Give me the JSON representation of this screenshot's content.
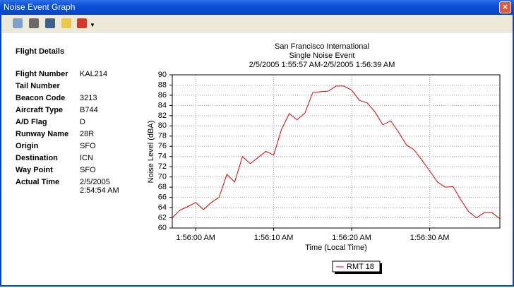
{
  "window": {
    "title": "Noise Event Graph"
  },
  "details": {
    "heading": "Flight Details",
    "fields": [
      {
        "label": "Flight Number",
        "value": "KAL214"
      },
      {
        "label": "Tail Number"
      },
      {
        "label": "Beacon Code",
        "value": "3213"
      },
      {
        "label": "Aircraft Type",
        "value": "B744"
      },
      {
        "label": "A/D Flag",
        "value": "D"
      },
      {
        "label": "Runway Name",
        "value": "28R"
      },
      {
        "label": "Origin",
        "value": "SFO"
      },
      {
        "label": "Destination",
        "value": "ICN"
      },
      {
        "label": "Way Point",
        "value": "SFO"
      },
      {
        "label": "Actual Time",
        "value": "2/5/2005 2:54:54 AM"
      }
    ]
  },
  "chart_data": {
    "type": "line",
    "title": "San Francisco International",
    "subtitle": "Single Noise Event",
    "time_range": "2/5/2005 1:55:57 AM-2/5/2005 1:56:39 AM",
    "x_label": "Time (Local Time)",
    "y_label": "Noise Level (dBA)",
    "x": [
      6957,
      6958,
      6959,
      6960,
      6961,
      6962,
      6963,
      6964,
      6965,
      6966,
      6967,
      6968,
      6969,
      6970,
      6971,
      6972,
      6973,
      6974,
      6975,
      6976,
      6977,
      6978,
      6979,
      6980,
      6981,
      6982,
      6983,
      6984,
      6985,
      6986,
      6987,
      6988,
      6989,
      6990,
      6991,
      6992,
      6993,
      6994,
      6995,
      6996,
      6997,
      6998,
      6999
    ],
    "series": [
      {
        "name": "RMT 18",
        "color": "#d40000",
        "values": [
          62,
          63.5,
          64.2,
          65,
          63.6,
          65,
          66,
          70.5,
          69,
          74,
          72.6,
          73.8,
          75,
          74.3,
          79.3,
          82.4,
          81.2,
          82.5,
          86.5,
          86.7,
          86.8,
          87.8,
          87.8,
          87,
          85,
          84.5,
          82.7,
          80.2,
          81,
          78.8,
          76.3,
          75.3,
          73.3,
          71.2,
          69,
          68,
          68.1,
          65.5,
          63.2,
          62,
          63,
          63,
          61.8
        ]
      }
    ],
    "xlim": [
      6957,
      6999
    ],
    "xticks": [
      {
        "value": 6960,
        "label": "1:56:00 AM"
      },
      {
        "value": 6970,
        "label": "1:56:10 AM"
      },
      {
        "value": 6980,
        "label": "1:56:20 AM"
      },
      {
        "value": 6990,
        "label": "1:56:30 AM"
      }
    ],
    "ylim": [
      60,
      90
    ],
    "yticks": [
      60,
      62,
      64,
      66,
      68,
      70,
      72,
      74,
      76,
      78,
      80,
      82,
      84,
      86,
      88,
      90
    ],
    "grid": true,
    "legend": "bottom"
  }
}
